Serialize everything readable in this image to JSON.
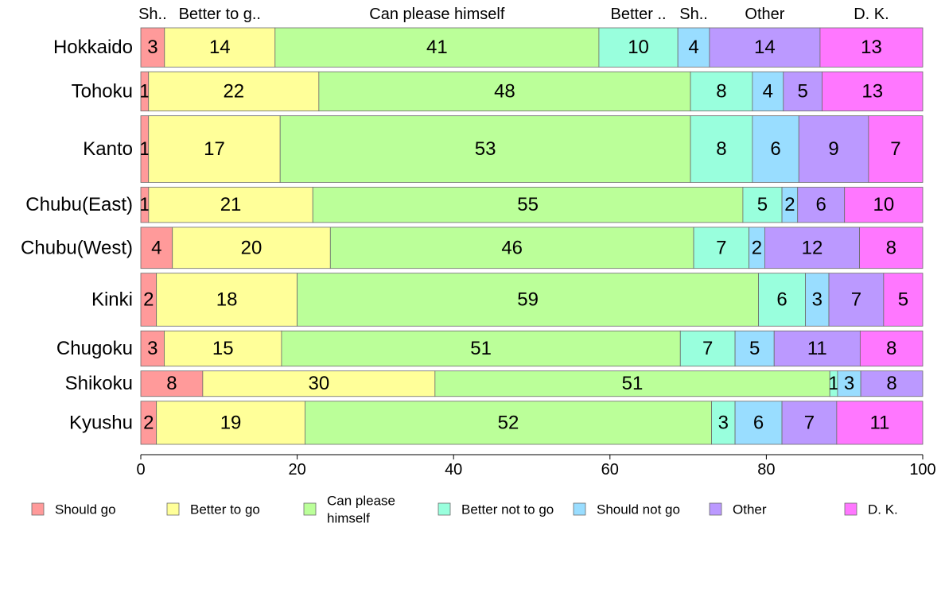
{
  "chart_data": {
    "type": "bar",
    "orientation": "horizontal",
    "stacked": true,
    "normalized": "percent",
    "categories": [
      "Hokkaido",
      "Tohoku",
      "Kanto",
      "Chubu(East)",
      "Chubu(West)",
      "Kinki",
      "Chugoku",
      "Shikoku",
      "Kyushu"
    ],
    "series": [
      {
        "name": "Should go",
        "short_label": "Sh..",
        "color": "#ff9a9a",
        "values": [
          3,
          1,
          1,
          1,
          4,
          2,
          3,
          8,
          2
        ]
      },
      {
        "name": "Better to go",
        "short_label": "Better to g..",
        "color": "#ffff99",
        "values": [
          14,
          22,
          17,
          21,
          20,
          18,
          15,
          30,
          19
        ]
      },
      {
        "name": "Can please himself",
        "short_label": "Can please himself",
        "legend_lines": [
          "Can please",
          "himself"
        ],
        "color": "#bbff99",
        "values": [
          41,
          48,
          53,
          55,
          46,
          59,
          51,
          51,
          52
        ]
      },
      {
        "name": "Better not to go",
        "short_label": "Better ..",
        "color": "#99ffdd",
        "values": [
          10,
          8,
          8,
          5,
          7,
          6,
          7,
          1,
          3
        ]
      },
      {
        "name": "Should not go",
        "short_label": "Sh..",
        "color": "#99ddff",
        "values": [
          4,
          4,
          6,
          2,
          2,
          3,
          5,
          3,
          6
        ]
      },
      {
        "name": "Other",
        "short_label": "Other",
        "color": "#bb99ff",
        "values": [
          14,
          5,
          9,
          6,
          12,
          7,
          11,
          8,
          7
        ]
      },
      {
        "name": "D. K.",
        "short_label": "D. K.",
        "color": "#ff77ff",
        "values": [
          13,
          13,
          7,
          10,
          8,
          5,
          8,
          0,
          11
        ]
      }
    ],
    "row_weights": [
      1.0,
      1.0,
      1.7,
      0.9,
      1.05,
      1.35,
      0.9,
      0.65,
      1.1
    ],
    "xlim": [
      0,
      100
    ],
    "xticks": [
      0,
      20,
      40,
      60,
      80,
      100
    ],
    "xlabel": "",
    "ylabel": "",
    "grid": false,
    "legend_position": "bottom"
  }
}
